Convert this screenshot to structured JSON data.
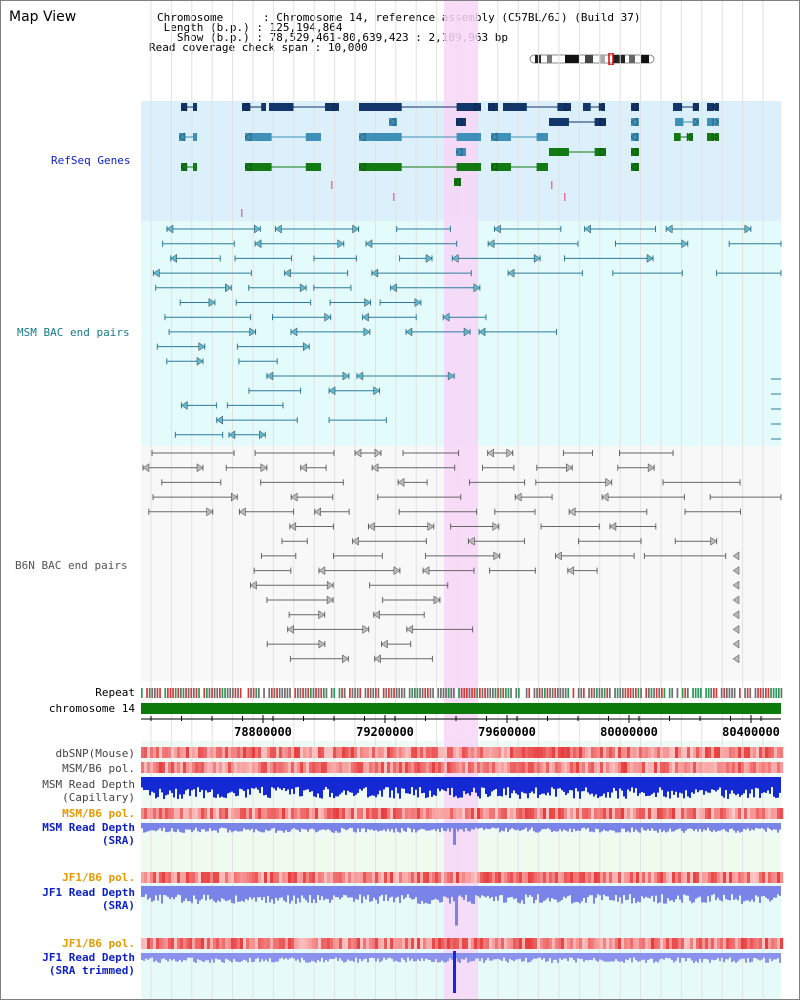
{
  "title": "Map View",
  "info": {
    "chromosome_label": "Chromosome",
    "chromosome_value": "Chromosome 14, reference assembly (C57BL/6J) (Build 37)",
    "length_label": "Length (b.p.)",
    "length_value": "125,194,864",
    "show_label": "Show (b.p.)",
    "show_value": "78,529,461-80,639,423 : 2,109,963 bp",
    "span_label": "Read coverage check span",
    "span_value": "10,000"
  },
  "tracks": {
    "refseq": "RefSeq Genes",
    "msm_bac": "MSM BAC end pairs",
    "b6n_bac": "B6N BAC end pairs",
    "repeat": "Repeat",
    "chromosome": "chromosome 14",
    "dbsnp": "dbSNP(Mouse)",
    "msm_pol_1": "MSM/B6 pol.",
    "msm_depth_cap_1": "MSM Read Depth",
    "msm_depth_cap_2": "(Capillary)",
    "msm_pol_2": "MSM/B6 pol.",
    "msm_depth_sra_1": "MSM Read Depth",
    "msm_depth_sra_2": "(SRA)",
    "jf1_pol_1": "JF1/B6 pol.",
    "jf1_depth_sra_1": "JF1 Read Depth",
    "jf1_depth_sra_2": "(SRA)",
    "jf1_pol_2": "JF1/B6 pol.",
    "jf1_depth_trim_1": "JF1 Read Depth",
    "jf1_depth_trim_2": "(SRA trimmed)"
  },
  "axis": {
    "ticks": [
      "78800000",
      "79200000",
      "79600000",
      "80000000",
      "80400000"
    ]
  },
  "colors": {
    "highlight": "#f7d6f7",
    "refseq_bg": "#dbf0fa",
    "msm_bg": "#e4fbfb",
    "b6n_bg": "#f8f8f8",
    "refseq_dark": "#12356a",
    "refseq_mid": "#3e90b8",
    "refseq_green": "#137a13",
    "msm_line": "#2d7b9b",
    "b6n_line": "#666666",
    "chromosome_bar": "#0a7a0a",
    "label_blue": "#0b1fc4",
    "label_teal": "#157a8a",
    "label_gray": "#555555",
    "label_orange": "#e49a00"
  }
}
